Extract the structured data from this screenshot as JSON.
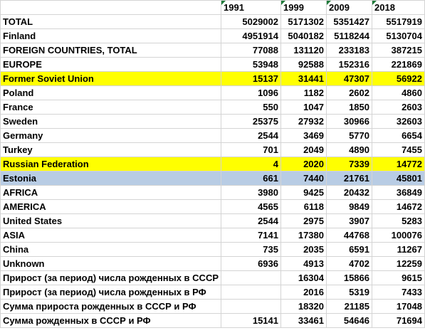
{
  "columns": [
    "",
    "1991",
    "1999",
    "2009",
    "2018"
  ],
  "rows": [
    {
      "label": "TOTAL",
      "values": [
        "5029002",
        "5171302",
        "5351427",
        "5517919"
      ],
      "highlight": ""
    },
    {
      "label": "Finland",
      "values": [
        "4951914",
        "5040182",
        "5118244",
        "5130704"
      ],
      "highlight": ""
    },
    {
      "label": "FOREIGN COUNTRIES, TOTAL",
      "values": [
        "77088",
        "131120",
        "233183",
        "387215"
      ],
      "highlight": ""
    },
    {
      "label": "EUROPE",
      "values": [
        "53948",
        "92588",
        "152316",
        "221869"
      ],
      "highlight": ""
    },
    {
      "label": "Former Soviet Union",
      "values": [
        "15137",
        "31441",
        "47307",
        "56922"
      ],
      "highlight": "yellow"
    },
    {
      "label": "Poland",
      "values": [
        "1096",
        "1182",
        "2602",
        "4860"
      ],
      "highlight": ""
    },
    {
      "label": "France",
      "values": [
        "550",
        "1047",
        "1850",
        "2603"
      ],
      "highlight": ""
    },
    {
      "label": "Sweden",
      "values": [
        "25375",
        "27932",
        "30966",
        "32603"
      ],
      "highlight": ""
    },
    {
      "label": "Germany",
      "values": [
        "2544",
        "3469",
        "5770",
        "6654"
      ],
      "highlight": ""
    },
    {
      "label": "Turkey",
      "values": [
        "701",
        "2049",
        "4890",
        "7455"
      ],
      "highlight": ""
    },
    {
      "label": "Russian Federation",
      "values": [
        "4",
        "2020",
        "7339",
        "14772"
      ],
      "highlight": "yellow"
    },
    {
      "label": "Estonia",
      "values": [
        "661",
        "7440",
        "21761",
        "45801"
      ],
      "highlight": "blue"
    },
    {
      "label": "AFRICA",
      "values": [
        "3980",
        "9425",
        "20432",
        "36849"
      ],
      "highlight": ""
    },
    {
      "label": "AMERICA",
      "values": [
        "4565",
        "6118",
        "9849",
        "14672"
      ],
      "highlight": ""
    },
    {
      "label": "United States",
      "values": [
        "2544",
        "2975",
        "3907",
        "5283"
      ],
      "highlight": ""
    },
    {
      "label": "ASIA",
      "values": [
        "7141",
        "17380",
        "44768",
        "100076"
      ],
      "highlight": ""
    },
    {
      "label": "China",
      "values": [
        "735",
        "2035",
        "6591",
        "11267"
      ],
      "highlight": ""
    },
    {
      "label": "Unknown",
      "values": [
        "6936",
        "4913",
        "4702",
        "12259"
      ],
      "highlight": ""
    },
    {
      "label": "Прирост (за период) числа рожденных в СССР",
      "values": [
        "",
        "16304",
        "15866",
        "9615"
      ],
      "highlight": ""
    },
    {
      "label": "Прирост (за период)  числа рожденных в РФ",
      "values": [
        "",
        "2016",
        "5319",
        "7433"
      ],
      "highlight": ""
    },
    {
      "label": "Сумма прироста рожденных в СССР и РФ",
      "values": [
        "",
        "18320",
        "21185",
        "17048"
      ],
      "highlight": ""
    },
    {
      "label": "Сумма рожденных в СССР и РФ",
      "values": [
        "15141",
        "33461",
        "54646",
        "71694"
      ],
      "highlight": ""
    }
  ],
  "colors": {
    "yellow": "#ffff00",
    "blue": "#b8cce4",
    "grid": "#d4d4d4"
  }
}
